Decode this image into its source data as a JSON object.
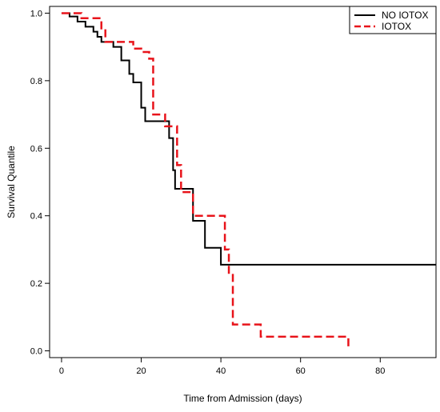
{
  "chart_data": {
    "type": "line",
    "xlabel": "Time from Admission (days)",
    "ylabel": "Survival Quantile",
    "xlim": [
      -3,
      94
    ],
    "ylim": [
      -0.02,
      1.02
    ],
    "x_ticks": [
      0,
      20,
      40,
      60,
      80
    ],
    "y_ticks": [
      0.0,
      0.2,
      0.4,
      0.6,
      0.8,
      1.0
    ],
    "x_tick_labels": [
      "0",
      "20",
      "40",
      "60",
      "80"
    ],
    "y_tick_labels": [
      "0.0",
      "0.2",
      "0.4",
      "0.6",
      "0.8",
      "1.0"
    ],
    "step": "post",
    "grid": false,
    "legend_position": "top-right",
    "series": [
      {
        "name": "NO IOTOX",
        "color": "#000000",
        "style": "solid",
        "x": [
          0,
          2,
          4,
          6,
          8,
          9,
          10,
          13,
          15,
          17,
          18,
          20,
          21,
          27,
          28,
          28.5,
          29,
          33,
          36,
          40,
          41,
          94
        ],
        "y": [
          1.0,
          0.99,
          0.975,
          0.96,
          0.945,
          0.93,
          0.915,
          0.9,
          0.86,
          0.82,
          0.795,
          0.72,
          0.68,
          0.63,
          0.535,
          0.48,
          0.48,
          0.385,
          0.305,
          0.255,
          0.255,
          0.255
        ]
      },
      {
        "name": "IOTOX",
        "color": "#e8141b",
        "style": "dashed",
        "x": [
          0,
          5,
          10,
          11,
          18,
          20,
          22,
          23,
          26,
          29,
          30,
          33,
          41,
          42,
          43,
          50,
          72,
          72
        ],
        "y": [
          1.0,
          0.985,
          0.955,
          0.915,
          0.895,
          0.885,
          0.865,
          0.7,
          0.665,
          0.55,
          0.47,
          0.4,
          0.3,
          0.228,
          0.078,
          0.042,
          0.042,
          0.01
        ]
      }
    ]
  }
}
